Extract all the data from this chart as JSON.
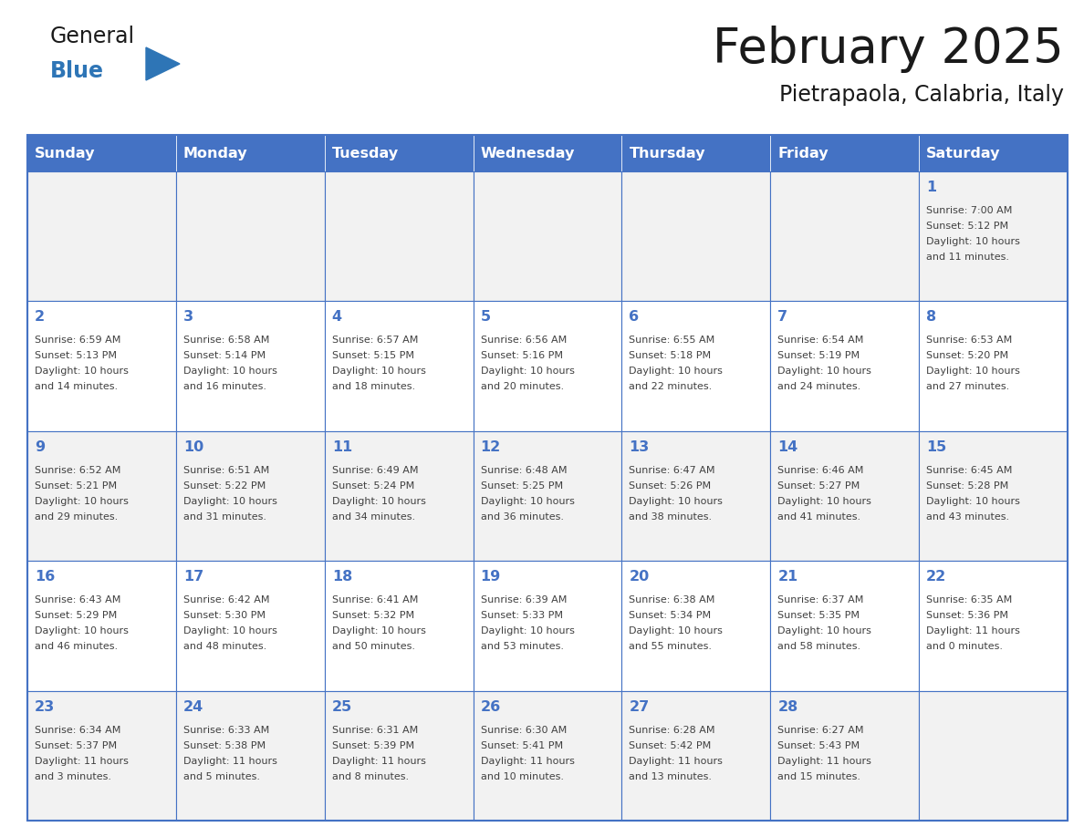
{
  "title": "February 2025",
  "subtitle": "Pietrapaola, Calabria, Italy",
  "header_bg": "#4472C4",
  "header_text_color": "#FFFFFF",
  "days_of_week": [
    "Sunday",
    "Monday",
    "Tuesday",
    "Wednesday",
    "Thursday",
    "Friday",
    "Saturday"
  ],
  "grid_line_color": "#4472C4",
  "row_colors": [
    "#F2F2F2",
    "#FFFFFF",
    "#F2F2F2",
    "#FFFFFF",
    "#F2F2F2"
  ],
  "day_number_color": "#4472C4",
  "info_text_color": "#404040",
  "calendar_data": {
    "1": {
      "sunrise": "7:00 AM",
      "sunset": "5:12 PM",
      "daylight": "10 hours and 11 minutes.",
      "row": 0,
      "col": 6
    },
    "2": {
      "sunrise": "6:59 AM",
      "sunset": "5:13 PM",
      "daylight": "10 hours and 14 minutes.",
      "row": 1,
      "col": 0
    },
    "3": {
      "sunrise": "6:58 AM",
      "sunset": "5:14 PM",
      "daylight": "10 hours and 16 minutes.",
      "row": 1,
      "col": 1
    },
    "4": {
      "sunrise": "6:57 AM",
      "sunset": "5:15 PM",
      "daylight": "10 hours and 18 minutes.",
      "row": 1,
      "col": 2
    },
    "5": {
      "sunrise": "6:56 AM",
      "sunset": "5:16 PM",
      "daylight": "10 hours and 20 minutes.",
      "row": 1,
      "col": 3
    },
    "6": {
      "sunrise": "6:55 AM",
      "sunset": "5:18 PM",
      "daylight": "10 hours and 22 minutes.",
      "row": 1,
      "col": 4
    },
    "7": {
      "sunrise": "6:54 AM",
      "sunset": "5:19 PM",
      "daylight": "10 hours and 24 minutes.",
      "row": 1,
      "col": 5
    },
    "8": {
      "sunrise": "6:53 AM",
      "sunset": "5:20 PM",
      "daylight": "10 hours and 27 minutes.",
      "row": 1,
      "col": 6
    },
    "9": {
      "sunrise": "6:52 AM",
      "sunset": "5:21 PM",
      "daylight": "10 hours and 29 minutes.",
      "row": 2,
      "col": 0
    },
    "10": {
      "sunrise": "6:51 AM",
      "sunset": "5:22 PM",
      "daylight": "10 hours and 31 minutes.",
      "row": 2,
      "col": 1
    },
    "11": {
      "sunrise": "6:49 AM",
      "sunset": "5:24 PM",
      "daylight": "10 hours and 34 minutes.",
      "row": 2,
      "col": 2
    },
    "12": {
      "sunrise": "6:48 AM",
      "sunset": "5:25 PM",
      "daylight": "10 hours and 36 minutes.",
      "row": 2,
      "col": 3
    },
    "13": {
      "sunrise": "6:47 AM",
      "sunset": "5:26 PM",
      "daylight": "10 hours and 38 minutes.",
      "row": 2,
      "col": 4
    },
    "14": {
      "sunrise": "6:46 AM",
      "sunset": "5:27 PM",
      "daylight": "10 hours and 41 minutes.",
      "row": 2,
      "col": 5
    },
    "15": {
      "sunrise": "6:45 AM",
      "sunset": "5:28 PM",
      "daylight": "10 hours and 43 minutes.",
      "row": 2,
      "col": 6
    },
    "16": {
      "sunrise": "6:43 AM",
      "sunset": "5:29 PM",
      "daylight": "10 hours and 46 minutes.",
      "row": 3,
      "col": 0
    },
    "17": {
      "sunrise": "6:42 AM",
      "sunset": "5:30 PM",
      "daylight": "10 hours and 48 minutes.",
      "row": 3,
      "col": 1
    },
    "18": {
      "sunrise": "6:41 AM",
      "sunset": "5:32 PM",
      "daylight": "10 hours and 50 minutes.",
      "row": 3,
      "col": 2
    },
    "19": {
      "sunrise": "6:39 AM",
      "sunset": "5:33 PM",
      "daylight": "10 hours and 53 minutes.",
      "row": 3,
      "col": 3
    },
    "20": {
      "sunrise": "6:38 AM",
      "sunset": "5:34 PM",
      "daylight": "10 hours and 55 minutes.",
      "row": 3,
      "col": 4
    },
    "21": {
      "sunrise": "6:37 AM",
      "sunset": "5:35 PM",
      "daylight": "10 hours and 58 minutes.",
      "row": 3,
      "col": 5
    },
    "22": {
      "sunrise": "6:35 AM",
      "sunset": "5:36 PM",
      "daylight": "11 hours and 0 minutes.",
      "row": 3,
      "col": 6
    },
    "23": {
      "sunrise": "6:34 AM",
      "sunset": "5:37 PM",
      "daylight": "11 hours and 3 minutes.",
      "row": 4,
      "col": 0
    },
    "24": {
      "sunrise": "6:33 AM",
      "sunset": "5:38 PM",
      "daylight": "11 hours and 5 minutes.",
      "row": 4,
      "col": 1
    },
    "25": {
      "sunrise": "6:31 AM",
      "sunset": "5:39 PM",
      "daylight": "11 hours and 8 minutes.",
      "row": 4,
      "col": 2
    },
    "26": {
      "sunrise": "6:30 AM",
      "sunset": "5:41 PM",
      "daylight": "11 hours and 10 minutes.",
      "row": 4,
      "col": 3
    },
    "27": {
      "sunrise": "6:28 AM",
      "sunset": "5:42 PM",
      "daylight": "11 hours and 13 minutes.",
      "row": 4,
      "col": 4
    },
    "28": {
      "sunrise": "6:27 AM",
      "sunset": "5:43 PM",
      "daylight": "11 hours and 15 minutes.",
      "row": 4,
      "col": 5
    }
  },
  "n_rows": 5,
  "n_cols": 7,
  "logo_general_color": "#1a1a1a",
  "logo_blue_color": "#2e75b6",
  "fig_width": 11.88,
  "fig_height": 9.18,
  "dpi": 100
}
